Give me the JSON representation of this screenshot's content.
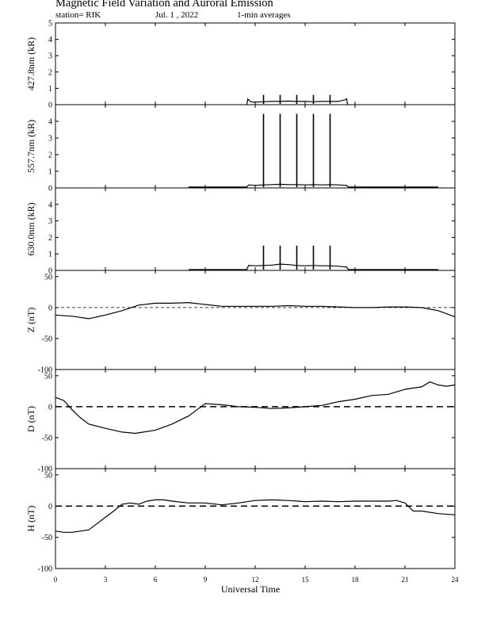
{
  "header": {
    "title": "Magnetic Field Variation and Auroral Emission",
    "station": "station= RIK",
    "date": "Jul. 1 , 2022",
    "averaging": "1-min averages"
  },
  "chart_data": [
    {
      "type": "line",
      "ylabel": "427.8nm (kR)",
      "ylim": [
        0,
        5
      ],
      "yticks": [
        0,
        1,
        2,
        3,
        4,
        5
      ],
      "baseline": 0,
      "dashed_zero": false,
      "series": [
        {
          "x": [
            11.5,
            11.55,
            11.7,
            11.9,
            12.5,
            13.0,
            13.5,
            14.0,
            14.5,
            15.0,
            15.5,
            16.0,
            16.5,
            17.0,
            17.4,
            17.5,
            17.55
          ],
          "y": [
            0.0,
            0.35,
            0.2,
            0.15,
            0.18,
            0.2,
            0.2,
            0.22,
            0.2,
            0.2,
            0.18,
            0.2,
            0.2,
            0.2,
            0.3,
            0.35,
            0.0
          ]
        }
      ],
      "spikes": [
        {
          "x": 12.5,
          "y": 0.6
        },
        {
          "x": 13.5,
          "y": 0.6
        },
        {
          "x": 14.5,
          "y": 0.6
        },
        {
          "x": 15.5,
          "y": 0.6
        },
        {
          "x": 16.5,
          "y": 0.6
        }
      ],
      "xlim": [
        0,
        24
      ],
      "xticks": [
        0,
        3,
        6,
        9,
        12,
        15,
        18,
        21,
        24
      ]
    },
    {
      "type": "line",
      "ylabel": "557.7nm (kR)",
      "ylim": [
        0,
        5
      ],
      "yticks": [
        0,
        1,
        2,
        3,
        4
      ],
      "baseline": 0,
      "dashed_zero": false,
      "series": [
        {
          "x": [
            8.0,
            11.5,
            11.6,
            12.0,
            12.5,
            13.0,
            13.5,
            14.0,
            14.5,
            15.0,
            15.5,
            16.0,
            16.5,
            17.0,
            17.5,
            17.6,
            23.0
          ],
          "y": [
            0.05,
            0.05,
            0.18,
            0.15,
            0.18,
            0.2,
            0.22,
            0.2,
            0.2,
            0.18,
            0.2,
            0.18,
            0.2,
            0.18,
            0.15,
            0.05,
            0.05
          ]
        }
      ],
      "spikes": [
        {
          "x": 12.5,
          "y": 4.45
        },
        {
          "x": 13.5,
          "y": 4.45
        },
        {
          "x": 14.5,
          "y": 4.45
        },
        {
          "x": 15.5,
          "y": 4.45
        },
        {
          "x": 16.5,
          "y": 4.45
        }
      ],
      "xlim": [
        0,
        24
      ],
      "xticks": [
        0,
        3,
        6,
        9,
        12,
        15,
        18,
        21,
        24
      ]
    },
    {
      "type": "line",
      "ylabel": "630.0nm (kR)",
      "ylim": [
        0,
        5
      ],
      "yticks": [
        0,
        1,
        2,
        3,
        4
      ],
      "baseline": 0,
      "dashed_zero": false,
      "series": [
        {
          "x": [
            8.0,
            11.5,
            11.6,
            12.0,
            12.5,
            13.0,
            13.5,
            14.0,
            14.5,
            15.0,
            15.5,
            16.0,
            16.5,
            17.0,
            17.5,
            17.6,
            23.0
          ],
          "y": [
            0.05,
            0.05,
            0.3,
            0.28,
            0.3,
            0.32,
            0.38,
            0.35,
            0.3,
            0.28,
            0.3,
            0.28,
            0.28,
            0.25,
            0.2,
            0.05,
            0.05
          ]
        }
      ],
      "spikes": [
        {
          "x": 12.5,
          "y": 1.5
        },
        {
          "x": 13.5,
          "y": 1.5
        },
        {
          "x": 14.5,
          "y": 1.5
        },
        {
          "x": 15.5,
          "y": 1.5
        },
        {
          "x": 16.5,
          "y": 1.5
        }
      ],
      "xlim": [
        0,
        24
      ],
      "xticks": [
        0,
        3,
        6,
        9,
        12,
        15,
        18,
        21,
        24
      ]
    },
    {
      "type": "line",
      "ylabel": "Z (nT)",
      "ylim": [
        -100,
        60
      ],
      "yticks": [
        -100,
        -50,
        0,
        50
      ],
      "dashed_zero": true,
      "series": [
        {
          "x": [
            0,
            1,
            2,
            3,
            4,
            5,
            6,
            7,
            8,
            9,
            10,
            11,
            12,
            13,
            14,
            15,
            16,
            17,
            18,
            19,
            20,
            21,
            22,
            23,
            24
          ],
          "y": [
            -12,
            -14,
            -18,
            -12,
            -5,
            4,
            7,
            7,
            8,
            5,
            2,
            2,
            2,
            2,
            3,
            2,
            2,
            1,
            0,
            0,
            1,
            1,
            0,
            -5,
            -15
          ]
        }
      ],
      "xlim": [
        0,
        24
      ],
      "xticks": [
        0,
        3,
        6,
        9,
        12,
        15,
        18,
        21,
        24
      ]
    },
    {
      "type": "line",
      "ylabel": "D (nT)",
      "ylim": [
        -100,
        60
      ],
      "yticks": [
        -100,
        -50,
        0,
        50
      ],
      "dashed_zero": true,
      "series": [
        {
          "x": [
            0,
            0.5,
            1,
            1.5,
            2,
            3,
            4,
            4.8,
            6,
            7,
            8,
            8.5,
            9,
            10,
            11,
            12,
            13,
            14,
            15,
            16,
            17,
            18,
            19,
            20,
            21,
            21.5,
            22,
            22.5,
            23,
            23.5,
            24
          ],
          "y": [
            15,
            10,
            -5,
            -18,
            -28,
            -35,
            -41,
            -43,
            -38,
            -28,
            -15,
            -5,
            5,
            3,
            0,
            -1,
            -3,
            -2,
            0,
            2,
            8,
            12,
            18,
            20,
            28,
            30,
            32,
            40,
            35,
            33,
            35
          ]
        }
      ],
      "xlim": [
        0,
        24
      ],
      "xticks": [
        0,
        3,
        6,
        9,
        12,
        15,
        18,
        21,
        24
      ]
    },
    {
      "type": "line",
      "ylabel": "H (nT)",
      "ylim": [
        -100,
        60
      ],
      "yticks": [
        -100,
        -50,
        0,
        50
      ],
      "dashed_zero": true,
      "series": [
        {
          "x": [
            0,
            0.5,
            1,
            1.5,
            2,
            2.5,
            3,
            3.5,
            4,
            4.5,
            5,
            5.5,
            6,
            6.5,
            7,
            8,
            9,
            10,
            11,
            12,
            13,
            14,
            15,
            16,
            17,
            18,
            19,
            20,
            20.5,
            21,
            21.5,
            22,
            23,
            24
          ],
          "y": [
            -40,
            -42,
            -42,
            -40,
            -38,
            -28,
            -18,
            -8,
            3,
            5,
            3,
            8,
            10,
            10,
            8,
            5,
            5,
            2,
            5,
            9,
            10,
            9,
            7,
            8,
            7,
            8,
            8,
            8,
            9,
            5,
            -8,
            -8,
            -12,
            -14
          ]
        }
      ],
      "xlim": [
        0,
        24
      ],
      "xticks": [
        0,
        3,
        6,
        9,
        12,
        15,
        18,
        21,
        24
      ]
    }
  ],
  "xaxis": {
    "label": "Universal Time",
    "tick_labels": [
      "0",
      "3",
      "6",
      "9",
      "12",
      "15",
      "18",
      "21",
      "24"
    ]
  }
}
